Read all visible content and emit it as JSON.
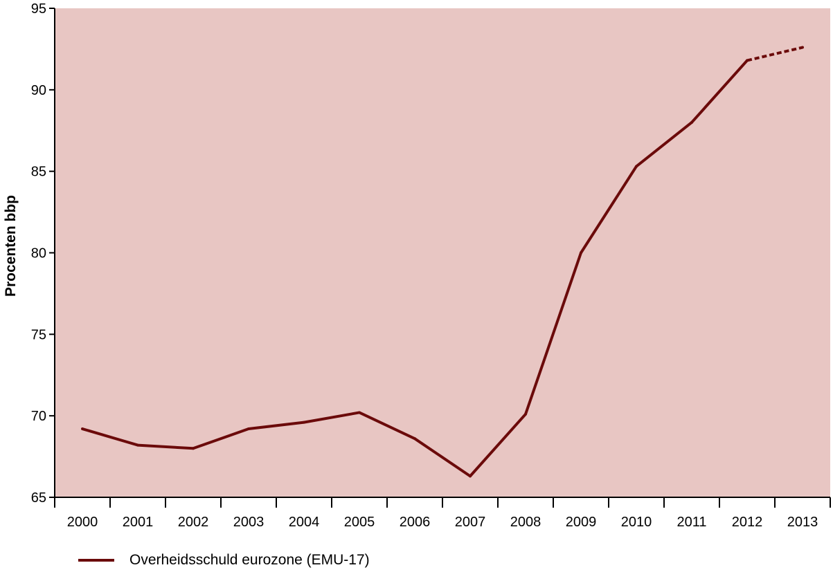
{
  "chart_data": {
    "type": "line",
    "ylabel": "Procenten bbp",
    "xlabel": "",
    "ylim": [
      65,
      95
    ],
    "yticks": [
      65,
      70,
      75,
      80,
      85,
      90,
      95
    ],
    "categories": [
      "2000",
      "2001",
      "2002",
      "2003",
      "2004",
      "2005",
      "2006",
      "2007",
      "2008",
      "2009",
      "2010",
      "2011",
      "2012",
      "2013"
    ],
    "series": [
      {
        "name": "Overheidsschuld eurozone (EMU-17)",
        "values": [
          69.2,
          68.2,
          68.0,
          69.2,
          69.6,
          70.2,
          68.6,
          66.3,
          70.1,
          80.0,
          85.3,
          88.0,
          91.8,
          92.6
        ],
        "color": "#6b0a0a",
        "dashed_from_index": 12
      }
    ],
    "plot_background": "#e8c6c3",
    "legend_position": "bottom-left",
    "grid": false
  }
}
